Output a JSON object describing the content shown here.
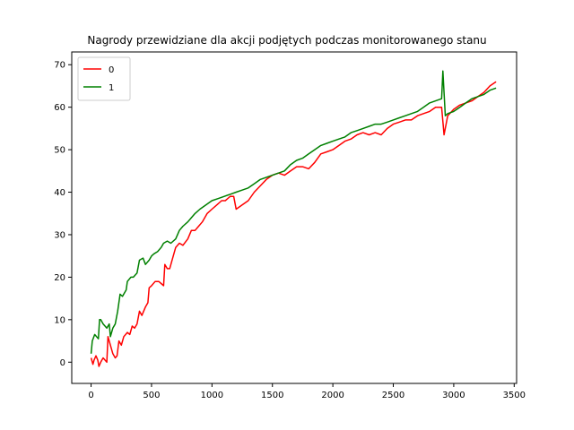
{
  "chart_data": {
    "type": "line",
    "title": "Nagrody przewidziane dla akcji podjętych podczas monitorowanego stanu",
    "xlabel": "",
    "ylabel": "",
    "xlim": [
      -160,
      3520
    ],
    "ylim": [
      -5,
      73
    ],
    "xticks": [
      0,
      500,
      1000,
      1500,
      2000,
      2500,
      3000,
      3500
    ],
    "yticks": [
      0,
      10,
      20,
      30,
      40,
      50,
      60,
      70
    ],
    "grid": false,
    "legend_position": "top-left",
    "series": [
      {
        "name": "0",
        "color": "#ff0000",
        "points": [
          [
            0,
            1
          ],
          [
            15,
            -0.5
          ],
          [
            25,
            0.5
          ],
          [
            40,
            1.5
          ],
          [
            55,
            0.5
          ],
          [
            65,
            -1
          ],
          [
            80,
            0
          ],
          [
            100,
            1
          ],
          [
            130,
            0
          ],
          [
            140,
            6
          ],
          [
            160,
            4
          ],
          [
            180,
            2
          ],
          [
            200,
            1
          ],
          [
            215,
            1.5
          ],
          [
            230,
            5
          ],
          [
            250,
            4
          ],
          [
            270,
            6
          ],
          [
            300,
            7
          ],
          [
            320,
            6.5
          ],
          [
            340,
            8.5
          ],
          [
            360,
            8
          ],
          [
            380,
            9
          ],
          [
            400,
            12
          ],
          [
            420,
            11
          ],
          [
            450,
            13
          ],
          [
            470,
            14
          ],
          [
            480,
            17.5
          ],
          [
            500,
            18
          ],
          [
            530,
            19
          ],
          [
            560,
            19
          ],
          [
            580,
            18.5
          ],
          [
            600,
            18
          ],
          [
            610,
            23
          ],
          [
            630,
            22
          ],
          [
            650,
            22
          ],
          [
            680,
            25
          ],
          [
            700,
            27
          ],
          [
            730,
            28
          ],
          [
            760,
            27.5
          ],
          [
            800,
            29
          ],
          [
            830,
            31
          ],
          [
            860,
            31
          ],
          [
            890,
            32
          ],
          [
            920,
            33
          ],
          [
            960,
            35
          ],
          [
            1000,
            36
          ],
          [
            1040,
            37
          ],
          [
            1080,
            38
          ],
          [
            1110,
            38
          ],
          [
            1150,
            39
          ],
          [
            1180,
            39
          ],
          [
            1200,
            36
          ],
          [
            1250,
            37
          ],
          [
            1300,
            38
          ],
          [
            1350,
            40
          ],
          [
            1400,
            41.5
          ],
          [
            1450,
            43
          ],
          [
            1500,
            44
          ],
          [
            1550,
            44.5
          ],
          [
            1600,
            44
          ],
          [
            1650,
            45
          ],
          [
            1700,
            46
          ],
          [
            1750,
            46
          ],
          [
            1800,
            45.5
          ],
          [
            1850,
            47
          ],
          [
            1900,
            49
          ],
          [
            1950,
            49.5
          ],
          [
            2000,
            50
          ],
          [
            2050,
            51
          ],
          [
            2100,
            52
          ],
          [
            2150,
            52.5
          ],
          [
            2200,
            53.5
          ],
          [
            2250,
            54
          ],
          [
            2300,
            53.5
          ],
          [
            2350,
            54
          ],
          [
            2400,
            53.5
          ],
          [
            2450,
            55
          ],
          [
            2500,
            56
          ],
          [
            2550,
            56.5
          ],
          [
            2600,
            57
          ],
          [
            2650,
            57
          ],
          [
            2700,
            58
          ],
          [
            2750,
            58.5
          ],
          [
            2800,
            59
          ],
          [
            2850,
            60
          ],
          [
            2900,
            60
          ],
          [
            2920,
            53.5
          ],
          [
            2950,
            58
          ],
          [
            3000,
            59.5
          ],
          [
            3050,
            60.5
          ],
          [
            3100,
            61
          ],
          [
            3150,
            61.5
          ],
          [
            3200,
            62.5
          ],
          [
            3250,
            63.5
          ],
          [
            3300,
            65
          ],
          [
            3350,
            66
          ]
        ]
      },
      {
        "name": "1",
        "color": "#008000",
        "points": [
          [
            0,
            2
          ],
          [
            10,
            5
          ],
          [
            30,
            6.5
          ],
          [
            60,
            5.5
          ],
          [
            70,
            10
          ],
          [
            80,
            10
          ],
          [
            100,
            9
          ],
          [
            130,
            8
          ],
          [
            150,
            9
          ],
          [
            160,
            6
          ],
          [
            180,
            8
          ],
          [
            200,
            9
          ],
          [
            220,
            12
          ],
          [
            240,
            16
          ],
          [
            260,
            15.5
          ],
          [
            290,
            17
          ],
          [
            300,
            19
          ],
          [
            330,
            20
          ],
          [
            350,
            20
          ],
          [
            380,
            21
          ],
          [
            400,
            24
          ],
          [
            430,
            24.5
          ],
          [
            450,
            23
          ],
          [
            480,
            24
          ],
          [
            500,
            25
          ],
          [
            520,
            25.5
          ],
          [
            550,
            26
          ],
          [
            580,
            27
          ],
          [
            600,
            28
          ],
          [
            630,
            28.5
          ],
          [
            660,
            28
          ],
          [
            700,
            29
          ],
          [
            730,
            31
          ],
          [
            760,
            32
          ],
          [
            800,
            33
          ],
          [
            830,
            34
          ],
          [
            860,
            35
          ],
          [
            900,
            36
          ],
          [
            950,
            37
          ],
          [
            1000,
            38
          ],
          [
            1050,
            38.5
          ],
          [
            1100,
            39
          ],
          [
            1150,
            39.5
          ],
          [
            1200,
            40
          ],
          [
            1250,
            40.5
          ],
          [
            1300,
            41
          ],
          [
            1350,
            42
          ],
          [
            1400,
            43
          ],
          [
            1450,
            43.5
          ],
          [
            1500,
            44
          ],
          [
            1550,
            44.5
          ],
          [
            1600,
            45
          ],
          [
            1650,
            46.5
          ],
          [
            1700,
            47.5
          ],
          [
            1750,
            48
          ],
          [
            1800,
            49
          ],
          [
            1850,
            50
          ],
          [
            1900,
            51
          ],
          [
            1950,
            51.5
          ],
          [
            2000,
            52
          ],
          [
            2050,
            52.5
          ],
          [
            2100,
            53
          ],
          [
            2150,
            54
          ],
          [
            2200,
            54.5
          ],
          [
            2250,
            55
          ],
          [
            2300,
            55.5
          ],
          [
            2350,
            56
          ],
          [
            2400,
            56
          ],
          [
            2450,
            56.5
          ],
          [
            2500,
            57
          ],
          [
            2550,
            57.5
          ],
          [
            2600,
            58
          ],
          [
            2650,
            58.5
          ],
          [
            2700,
            59
          ],
          [
            2750,
            60
          ],
          [
            2800,
            61
          ],
          [
            2850,
            61.5
          ],
          [
            2900,
            62
          ],
          [
            2910,
            68.5
          ],
          [
            2930,
            58
          ],
          [
            2950,
            58.5
          ],
          [
            3000,
            59
          ],
          [
            3050,
            60
          ],
          [
            3100,
            61
          ],
          [
            3150,
            62
          ],
          [
            3200,
            62.5
          ],
          [
            3250,
            63
          ],
          [
            3300,
            64
          ],
          [
            3350,
            64.5
          ]
        ]
      }
    ]
  }
}
